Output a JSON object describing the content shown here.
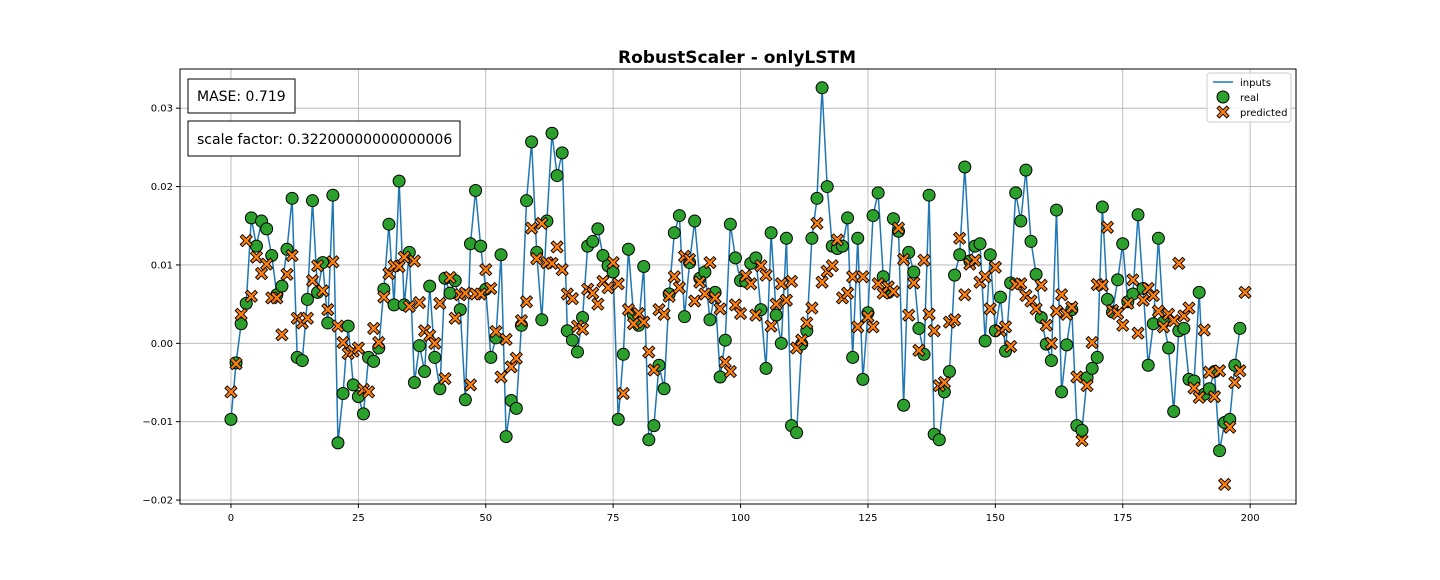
{
  "chart_data": {
    "type": "scatter",
    "title": "RobustScaler - onlyLSTM",
    "xlabel": "",
    "ylabel": "",
    "xlim": [
      -10,
      209
    ],
    "ylim": [
      -0.0205,
      0.035
    ],
    "xticks": [
      0,
      25,
      50,
      75,
      100,
      125,
      150,
      175,
      200
    ],
    "xtick_labels": [
      "0",
      "25",
      "50",
      "75",
      "100",
      "125",
      "150",
      "175",
      "200"
    ],
    "yticks": [
      -0.02,
      -0.01,
      0.0,
      0.01,
      0.02,
      0.03
    ],
    "ytick_labels": [
      "−0.02",
      "−0.01",
      "0.00",
      "0.01",
      "0.02",
      "0.03"
    ],
    "grid": true,
    "legend_position": "top-right",
    "annotations": [
      "MASE: 0.719",
      "scale factor: 0.32200000000000006"
    ],
    "colors": {
      "line": "#1f77b4",
      "real": "#2ca02c",
      "predicted": "#ff7f0e",
      "edge": "#000000",
      "grid": "#b0b0b0"
    },
    "series": [
      {
        "name": "inputs",
        "style": "line",
        "x_start": 0,
        "values": [
          -0.0097,
          -0.0025,
          0.0025,
          0.0051,
          0.016,
          0.0124,
          0.0156,
          0.0146,
          0.0112,
          0.0062,
          0.0073,
          0.012,
          0.0185,
          -0.0018,
          -0.0022,
          0.0056,
          0.0182,
          0.0065,
          0.0103,
          0.0026,
          0.0189,
          -0.0127,
          -0.0064,
          0.0022,
          -0.0053,
          -0.0068,
          -0.009,
          -0.0018,
          -0.0023,
          -0.0006,
          0.0069,
          0.0152,
          0.0049,
          0.0207,
          0.0049,
          0.0116,
          -0.005,
          -0.0003,
          -0.0036,
          0.0073,
          -0.0018,
          -0.0058,
          0.0083,
          0.0064,
          0.008,
          0.0043,
          -0.0072,
          0.0127,
          0.0195,
          0.0124,
          0.0069,
          -0.0018,
          0.0007,
          0.0113,
          -0.0119,
          -0.0073,
          -0.0083,
          0.0023,
          0.0182,
          0.0257,
          0.0116,
          0.003,
          0.0156,
          0.0268,
          0.0214,
          0.0243,
          0.0016,
          0.0004,
          -0.0011,
          0.0033,
          0.0124,
          0.013,
          0.0146,
          0.0112,
          0.0099,
          0.0091,
          -0.0097,
          -0.0014,
          0.012,
          0.0036,
          0.0023,
          0.0098,
          -0.0123,
          -0.0105,
          -0.0028,
          -0.0058,
          0.0063,
          0.0141,
          0.0163,
          0.0034,
          0.0103,
          0.0156,
          0.0083,
          0.0091,
          0.003,
          0.0065,
          -0.0043,
          0.0004,
          0.0152,
          0.0109,
          0.008,
          0.0079,
          0.0102,
          0.0109,
          0.0043,
          -0.0032,
          0.0141,
          0.0036,
          0.0,
          0.0134,
          -0.0105,
          -0.0114,
          -0.0001,
          0.0016,
          0.0134,
          0.0185,
          0.0326,
          0.02,
          0.0124,
          0.0121,
          0.0124,
          0.016,
          -0.0018,
          0.0134,
          -0.0046,
          0.0039,
          0.0163,
          0.0192,
          0.0085,
          0.0065,
          0.0159,
          0.0143,
          -0.0079,
          0.0116,
          0.0091,
          0.0019,
          -0.0014,
          0.0189,
          -0.0116,
          -0.0123,
          -0.0062,
          -0.0036,
          0.0087,
          0.0113,
          0.0225,
          0.0105,
          0.0124,
          0.0127,
          0.0003,
          0.0113,
          0.0016,
          0.0059,
          -0.001,
          0.0077,
          0.0192,
          0.0156,
          0.0221,
          0.013,
          0.0088,
          0.0033,
          -0.0001,
          -0.0022,
          0.017,
          -0.0062,
          -0.0002,
          0.0043,
          -0.0105,
          -0.0111,
          -0.0044,
          -0.0032,
          -0.0018,
          0.0174,
          0.0056,
          0.004,
          0.0081,
          0.0127,
          0.0053,
          0.0063,
          0.0164,
          0.007,
          -0.0028,
          0.0025,
          0.0134,
          0.0027,
          -0.0006,
          -0.0087,
          0.0016,
          0.0019,
          -0.0046,
          -0.0048,
          0.0065,
          -0.0065,
          -0.0058,
          -0.0036,
          -0.0137,
          -0.0101,
          -0.0097,
          -0.0028,
          0.0019
        ]
      },
      {
        "name": "real",
        "style": "markers",
        "x_start": 0,
        "values": [
          -0.0097,
          -0.0025,
          0.0025,
          0.0051,
          0.016,
          0.0124,
          0.0156,
          0.0146,
          0.0112,
          0.0062,
          0.0073,
          0.012,
          0.0185,
          -0.0018,
          -0.0022,
          0.0056,
          0.0182,
          0.0065,
          0.0103,
          0.0026,
          0.0189,
          -0.0127,
          -0.0064,
          0.0022,
          -0.0053,
          -0.0068,
          -0.009,
          -0.0018,
          -0.0023,
          -0.0006,
          0.0069,
          0.0152,
          0.0049,
          0.0207,
          0.0049,
          0.0116,
          -0.005,
          -0.0003,
          -0.0036,
          0.0073,
          -0.0018,
          -0.0058,
          0.0083,
          0.0064,
          0.008,
          0.0043,
          -0.0072,
          0.0127,
          0.0195,
          0.0124,
          0.0069,
          -0.0018,
          0.0007,
          0.0113,
          -0.0119,
          -0.0073,
          -0.0083,
          0.0023,
          0.0182,
          0.0257,
          0.0116,
          0.003,
          0.0156,
          0.0268,
          0.0214,
          0.0243,
          0.0016,
          0.0004,
          -0.0011,
          0.0033,
          0.0124,
          0.013,
          0.0146,
          0.0112,
          0.0099,
          0.0091,
          -0.0097,
          -0.0014,
          0.012,
          0.0036,
          0.0023,
          0.0098,
          -0.0123,
          -0.0105,
          -0.0028,
          -0.0058,
          0.0063,
          0.0141,
          0.0163,
          0.0034,
          0.0103,
          0.0156,
          0.0083,
          0.0091,
          0.003,
          0.0065,
          -0.0043,
          0.0004,
          0.0152,
          0.0109,
          0.008,
          0.0079,
          0.0102,
          0.0109,
          0.0043,
          -0.0032,
          0.0141,
          0.0036,
          0.0,
          0.0134,
          -0.0105,
          -0.0114,
          -0.0001,
          0.0016,
          0.0134,
          0.0185,
          0.0326,
          0.02,
          0.0124,
          0.0121,
          0.0124,
          0.016,
          -0.0018,
          0.0134,
          -0.0046,
          0.0039,
          0.0163,
          0.0192,
          0.0085,
          0.0065,
          0.0159,
          0.0143,
          -0.0079,
          0.0116,
          0.0091,
          0.0019,
          -0.0014,
          0.0189,
          -0.0116,
          -0.0123,
          -0.0062,
          -0.0036,
          0.0087,
          0.0113,
          0.0225,
          0.0105,
          0.0124,
          0.0127,
          0.0003,
          0.0113,
          0.0016,
          0.0059,
          -0.001,
          0.0077,
          0.0192,
          0.0156,
          0.0221,
          0.013,
          0.0088,
          0.0033,
          -0.0001,
          -0.0022,
          0.017,
          -0.0062,
          -0.0002,
          0.0043,
          -0.0105,
          -0.0111,
          -0.0044,
          -0.0032,
          -0.0018,
          0.0174,
          0.0056,
          0.004,
          0.0081,
          0.0127,
          0.0053,
          0.0063,
          0.0164,
          0.007,
          -0.0028,
          0.0025,
          0.0134,
          0.0027,
          -0.0006,
          -0.0087,
          0.0016,
          0.0019,
          -0.0046,
          -0.0048,
          0.0065,
          -0.0065,
          -0.0058,
          -0.0036,
          -0.0137,
          -0.0101,
          -0.0097,
          -0.0028,
          0.0019
        ]
      },
      {
        "name": "predicted",
        "style": "markers",
        "x_start": 0,
        "values": [
          -0.0062,
          -0.0026,
          0.0037,
          0.0131,
          0.006,
          0.011,
          0.0089,
          0.0101,
          0.0058,
          0.0058,
          0.0011,
          0.0088,
          0.0112,
          0.0032,
          0.0026,
          0.0032,
          0.008,
          0.0099,
          0.0067,
          0.0043,
          0.0104,
          0.0022,
          0.0001,
          -0.0013,
          -0.001,
          -0.0006,
          -0.0059,
          -0.0062,
          0.0019,
          0.0001,
          0.0059,
          0.0089,
          0.0099,
          0.0098,
          0.011,
          0.0047,
          0.0105,
          0.0052,
          0.0016,
          0.001,
          0.0,
          0.0051,
          -0.0045,
          0.0084,
          0.0032,
          0.0062,
          0.0064,
          -0.0053,
          0.0063,
          0.0063,
          0.0094,
          0.007,
          0.0015,
          -0.0043,
          0.0005,
          -0.003,
          -0.0019,
          0.0029,
          0.0053,
          0.0147,
          0.0108,
          0.0153,
          0.0103,
          0.0102,
          0.0123,
          0.0094,
          0.0063,
          0.0057,
          0.0022,
          0.0018,
          0.0069,
          0.0064,
          0.005,
          0.0079,
          0.0071,
          0.0103,
          0.0076,
          -0.0064,
          0.0043,
          0.0025,
          0.0038,
          0.0027,
          -0.0011,
          -0.0034,
          0.0043,
          0.0037,
          0.006,
          0.0085,
          0.0071,
          0.0111,
          0.0107,
          0.0054,
          0.0078,
          0.0063,
          0.0103,
          0.0058,
          0.0044,
          -0.0024,
          -0.0036,
          0.0049,
          0.0038,
          0.0086,
          0.0076,
          0.0036,
          0.0099,
          0.0087,
          0.0022,
          0.005,
          0.0076,
          0.0055,
          0.0079,
          -0.0006,
          0.0004,
          0.0026,
          0.0045,
          0.0153,
          0.0078,
          0.0092,
          0.0099,
          0.0132,
          0.0058,
          0.0064,
          0.0085,
          0.0021,
          0.0085,
          0.0034,
          0.0021,
          0.0076,
          0.0064,
          0.0072,
          0.0066,
          0.0147,
          0.0107,
          0.0036,
          0.0077,
          -0.0009,
          0.0106,
          0.0037,
          0.0016,
          -0.0054,
          -0.005,
          0.0027,
          0.003,
          0.0134,
          0.0062,
          0.0101,
          0.0106,
          0.0078,
          0.0085,
          0.0044,
          0.0097,
          0.0016,
          0.0021,
          -0.0004,
          0.0075,
          0.0076,
          0.0061,
          0.0054,
          0.0044,
          0.0074,
          0.0023,
          0.0,
          0.0041,
          0.0062,
          0.0037,
          0.0046,
          -0.0043,
          -0.0124,
          -0.0054,
          0.0001,
          0.0075,
          0.0074,
          0.0148,
          0.0042,
          0.0038,
          0.0023,
          0.0051,
          0.0081,
          0.0013,
          0.0055,
          0.007,
          0.0061,
          0.0041,
          0.0021,
          0.0037,
          0.0029,
          0.0102,
          0.0035,
          0.0045,
          -0.0057,
          -0.0069,
          0.0017,
          -0.0037,
          -0.0068,
          -0.0035,
          -0.018,
          -0.0107,
          -0.005,
          -0.0035,
          0.0065
        ]
      }
    ]
  },
  "legend": {
    "items": [
      {
        "label": "inputs"
      },
      {
        "label": "real"
      },
      {
        "label": "predicted"
      }
    ]
  },
  "annotations": {
    "mase": "MASE: 0.719",
    "scale_factor": "scale factor: 0.32200000000000006"
  }
}
